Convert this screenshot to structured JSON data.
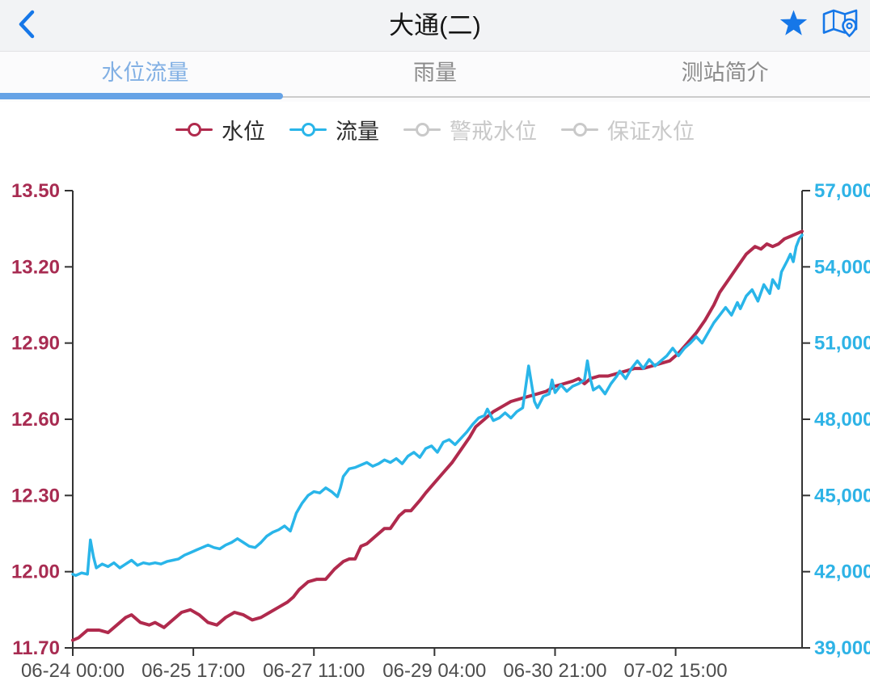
{
  "header": {
    "title": "大通(二)",
    "back_icon": "chevron-left",
    "favorite_icon": "star-filled",
    "map_icon": "map-with-pin"
  },
  "colors": {
    "accent_blue": "#1677e8",
    "header_bg": "#f2f3f5",
    "tab_active": "#82b0e4",
    "tab_underline": "#66a3e6",
    "water_level": "#b02a4d",
    "water_level_label": "#a82c52",
    "flow": "#29b5e9",
    "flow_label": "#2eb3e6",
    "legend_inactive": "#c9c9c9"
  },
  "tabs": [
    {
      "label": "水位流量",
      "active": true
    },
    {
      "label": "雨量",
      "active": false
    },
    {
      "label": "测站简介",
      "active": false
    }
  ],
  "legend": [
    {
      "label": "水位",
      "color": "#b02a4d",
      "active": true
    },
    {
      "label": "流量",
      "color": "#29b5e9",
      "active": true
    },
    {
      "label": "警戒水位",
      "color": "#c9c9c9",
      "active": false
    },
    {
      "label": "保证水位",
      "color": "#c9c9c9",
      "active": false
    }
  ],
  "chart_data": {
    "type": "line",
    "x_unit": "hours since 06-24 00:00",
    "x_range": [
      0,
      248
    ],
    "x_ticks": [
      {
        "t": 0,
        "label": "06-24 00:00"
      },
      {
        "t": 41,
        "label": "06-25 17:00"
      },
      {
        "t": 82,
        "label": "06-27 11:00"
      },
      {
        "t": 123,
        "label": "06-29 04:00"
      },
      {
        "t": 164,
        "label": "06-30 21:00"
      },
      {
        "t": 205,
        "label": "07-02 15:00"
      }
    ],
    "axis_color": "#333333",
    "x_label_color": "#4d4d4d",
    "grid": false,
    "legend_position": "top",
    "left_axis": {
      "series": "水位",
      "range": [
        11.7,
        13.5
      ],
      "ticks": [
        "13.50",
        "13.20",
        "12.90",
        "12.60",
        "12.30",
        "12.00",
        "11.70"
      ],
      "color": "#a82c52"
    },
    "right_axis": {
      "series": "流量",
      "range": [
        39000,
        57000
      ],
      "ticks": [
        "57,000",
        "54,000",
        "51,000",
        "48,000",
        "45,000",
        "42,000",
        "39,000"
      ],
      "color": "#2eb3e6"
    },
    "series": [
      {
        "name": "水位",
        "axis": "left",
        "color": "#b02a4d",
        "points": [
          [
            0,
            11.73
          ],
          [
            2,
            11.74
          ],
          [
            5,
            11.77
          ],
          [
            9,
            11.77
          ],
          [
            12,
            11.76
          ],
          [
            15,
            11.79
          ],
          [
            18,
            11.82
          ],
          [
            20,
            11.83
          ],
          [
            23,
            11.8
          ],
          [
            26,
            11.79
          ],
          [
            28,
            11.8
          ],
          [
            31,
            11.78
          ],
          [
            34,
            11.81
          ],
          [
            37,
            11.84
          ],
          [
            40,
            11.85
          ],
          [
            43,
            11.83
          ],
          [
            46,
            11.8
          ],
          [
            49,
            11.79
          ],
          [
            52,
            11.82
          ],
          [
            55,
            11.84
          ],
          [
            58,
            11.83
          ],
          [
            61,
            11.81
          ],
          [
            64,
            11.82
          ],
          [
            67,
            11.84
          ],
          [
            70,
            11.86
          ],
          [
            73,
            11.88
          ],
          [
            75,
            11.9
          ],
          [
            77,
            11.93
          ],
          [
            80,
            11.96
          ],
          [
            83,
            11.97
          ],
          [
            86,
            11.97
          ],
          [
            89,
            12.01
          ],
          [
            92,
            12.04
          ],
          [
            94,
            12.05
          ],
          [
            96,
            12.05
          ],
          [
            98,
            12.1
          ],
          [
            100,
            12.11
          ],
          [
            103,
            12.14
          ],
          [
            106,
            12.17
          ],
          [
            108,
            12.17
          ],
          [
            111,
            12.22
          ],
          [
            113,
            12.24
          ],
          [
            115,
            12.24
          ],
          [
            118,
            12.28
          ],
          [
            120,
            12.31
          ],
          [
            123,
            12.35
          ],
          [
            126,
            12.39
          ],
          [
            129,
            12.43
          ],
          [
            132,
            12.48
          ],
          [
            135,
            12.53
          ],
          [
            137,
            12.57
          ],
          [
            140,
            12.6
          ],
          [
            143,
            12.63
          ],
          [
            146,
            12.65
          ],
          [
            149,
            12.67
          ],
          [
            152,
            12.68
          ],
          [
            155,
            12.69
          ],
          [
            158,
            12.7
          ],
          [
            161,
            12.71
          ],
          [
            164,
            12.73
          ],
          [
            167,
            12.74
          ],
          [
            170,
            12.75
          ],
          [
            172,
            12.76
          ],
          [
            174,
            12.74
          ],
          [
            176,
            12.76
          ],
          [
            179,
            12.77
          ],
          [
            182,
            12.77
          ],
          [
            185,
            12.78
          ],
          [
            188,
            12.79
          ],
          [
            191,
            12.8
          ],
          [
            194,
            12.8
          ],
          [
            197,
            12.81
          ],
          [
            200,
            12.82
          ],
          [
            203,
            12.83
          ],
          [
            206,
            12.86
          ],
          [
            209,
            12.9
          ],
          [
            212,
            12.94
          ],
          [
            215,
            12.99
          ],
          [
            218,
            13.05
          ],
          [
            220,
            13.1
          ],
          [
            223,
            13.15
          ],
          [
            226,
            13.2
          ],
          [
            229,
            13.25
          ],
          [
            232,
            13.28
          ],
          [
            234,
            13.27
          ],
          [
            236,
            13.29
          ],
          [
            238,
            13.28
          ],
          [
            240,
            13.29
          ],
          [
            242,
            13.31
          ],
          [
            244,
            13.32
          ],
          [
            246,
            13.33
          ],
          [
            248,
            13.34
          ]
        ]
      },
      {
        "name": "流量",
        "axis": "right",
        "color": "#29b5e9",
        "points": [
          [
            0,
            41900
          ],
          [
            1,
            41850
          ],
          [
            3,
            41950
          ],
          [
            5,
            41900
          ],
          [
            6,
            43250
          ],
          [
            7,
            42600
          ],
          [
            8,
            42150
          ],
          [
            10,
            42300
          ],
          [
            12,
            42200
          ],
          [
            14,
            42350
          ],
          [
            16,
            42150
          ],
          [
            18,
            42300
          ],
          [
            20,
            42450
          ],
          [
            22,
            42250
          ],
          [
            24,
            42350
          ],
          [
            26,
            42300
          ],
          [
            28,
            42350
          ],
          [
            30,
            42300
          ],
          [
            32,
            42400
          ],
          [
            34,
            42450
          ],
          [
            36,
            42500
          ],
          [
            38,
            42650
          ],
          [
            40,
            42750
          ],
          [
            42,
            42850
          ],
          [
            44,
            42950
          ],
          [
            46,
            43050
          ],
          [
            48,
            42950
          ],
          [
            50,
            42900
          ],
          [
            52,
            43050
          ],
          [
            54,
            43150
          ],
          [
            56,
            43300
          ],
          [
            58,
            43150
          ],
          [
            60,
            43000
          ],
          [
            62,
            42950
          ],
          [
            64,
            43150
          ],
          [
            66,
            43400
          ],
          [
            68,
            43550
          ],
          [
            70,
            43650
          ],
          [
            72,
            43800
          ],
          [
            74,
            43600
          ],
          [
            76,
            44300
          ],
          [
            78,
            44700
          ],
          [
            80,
            45000
          ],
          [
            82,
            45150
          ],
          [
            84,
            45100
          ],
          [
            86,
            45300
          ],
          [
            88,
            45150
          ],
          [
            90,
            44950
          ],
          [
            91,
            45300
          ],
          [
            92,
            45750
          ],
          [
            94,
            46050
          ],
          [
            96,
            46100
          ],
          [
            98,
            46200
          ],
          [
            100,
            46300
          ],
          [
            102,
            46150
          ],
          [
            104,
            46250
          ],
          [
            106,
            46400
          ],
          [
            108,
            46300
          ],
          [
            110,
            46450
          ],
          [
            112,
            46250
          ],
          [
            114,
            46550
          ],
          [
            116,
            46700
          ],
          [
            118,
            46500
          ],
          [
            120,
            46850
          ],
          [
            122,
            46950
          ],
          [
            124,
            46700
          ],
          [
            126,
            47100
          ],
          [
            128,
            47200
          ],
          [
            130,
            47000
          ],
          [
            132,
            47250
          ],
          [
            134,
            47500
          ],
          [
            136,
            47800
          ],
          [
            138,
            48050
          ],
          [
            140,
            48150
          ],
          [
            141,
            48400
          ],
          [
            143,
            47950
          ],
          [
            145,
            48050
          ],
          [
            147,
            48250
          ],
          [
            149,
            48050
          ],
          [
            151,
            48300
          ],
          [
            153,
            48450
          ],
          [
            155,
            50100
          ],
          [
            157,
            48700
          ],
          [
            158,
            48450
          ],
          [
            160,
            48900
          ],
          [
            162,
            49000
          ],
          [
            163,
            49550
          ],
          [
            164,
            49050
          ],
          [
            166,
            49350
          ],
          [
            168,
            49100
          ],
          [
            170,
            49300
          ],
          [
            172,
            49400
          ],
          [
            174,
            49550
          ],
          [
            175,
            50300
          ],
          [
            176,
            49600
          ],
          [
            177,
            49150
          ],
          [
            179,
            49300
          ],
          [
            181,
            49000
          ],
          [
            183,
            49400
          ],
          [
            185,
            49700
          ],
          [
            186,
            49900
          ],
          [
            188,
            49600
          ],
          [
            190,
            50000
          ],
          [
            192,
            50300
          ],
          [
            194,
            50000
          ],
          [
            196,
            50350
          ],
          [
            198,
            50100
          ],
          [
            200,
            50300
          ],
          [
            202,
            50500
          ],
          [
            204,
            50800
          ],
          [
            206,
            50500
          ],
          [
            208,
            50800
          ],
          [
            210,
            51000
          ],
          [
            212,
            51250
          ],
          [
            214,
            51000
          ],
          [
            216,
            51400
          ],
          [
            218,
            51800
          ],
          [
            220,
            52100
          ],
          [
            222,
            52400
          ],
          [
            224,
            52100
          ],
          [
            226,
            52600
          ],
          [
            227,
            52350
          ],
          [
            229,
            52850
          ],
          [
            231,
            53100
          ],
          [
            233,
            52650
          ],
          [
            235,
            53300
          ],
          [
            237,
            52950
          ],
          [
            238,
            53500
          ],
          [
            240,
            53150
          ],
          [
            241,
            53800
          ],
          [
            243,
            54250
          ],
          [
            244,
            54500
          ],
          [
            245,
            54200
          ],
          [
            246,
            54800
          ],
          [
            247,
            55100
          ],
          [
            248,
            55250
          ]
        ]
      }
    ]
  }
}
